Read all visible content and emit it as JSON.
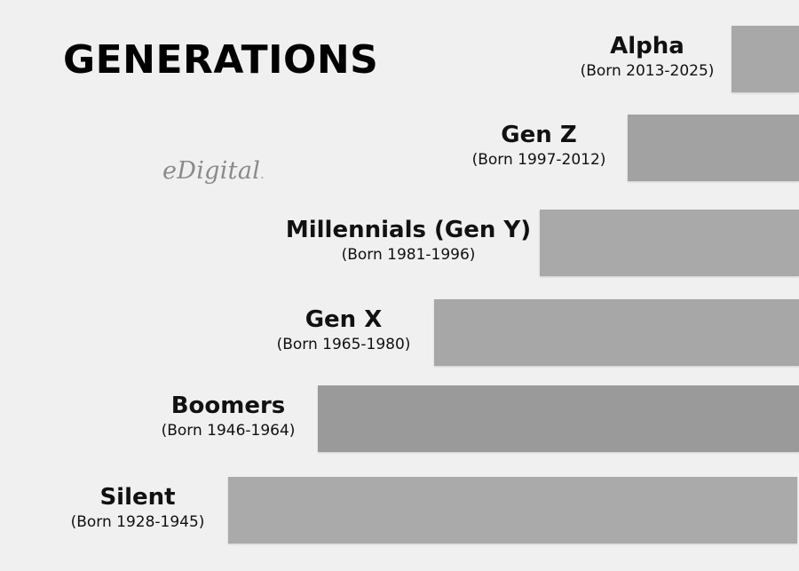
{
  "title": "GENERATIONS",
  "logo": {
    "text": "eDigital",
    "mark": "."
  },
  "generations": [
    {
      "name": "Alpha",
      "born": "(Born 2013-2025)",
      "color": "#a8a8a8"
    },
    {
      "name": "Gen Z",
      "born": "(Born 1997-2012)",
      "color": "#a2a2a2"
    },
    {
      "name": "Millennials (Gen Y)",
      "born": "(Born 1981-1996)",
      "color": "#a9a9a9"
    },
    {
      "name": "Gen X",
      "born": "(Born 1965-1980)",
      "color": "#a7a7a7"
    },
    {
      "name": "Boomers",
      "born": "(Born 1946-1964)",
      "color": "#9a9a9a"
    },
    {
      "name": "Silent",
      "born": "(Born 1928-1945)",
      "color": "#aaaaaa"
    }
  ]
}
